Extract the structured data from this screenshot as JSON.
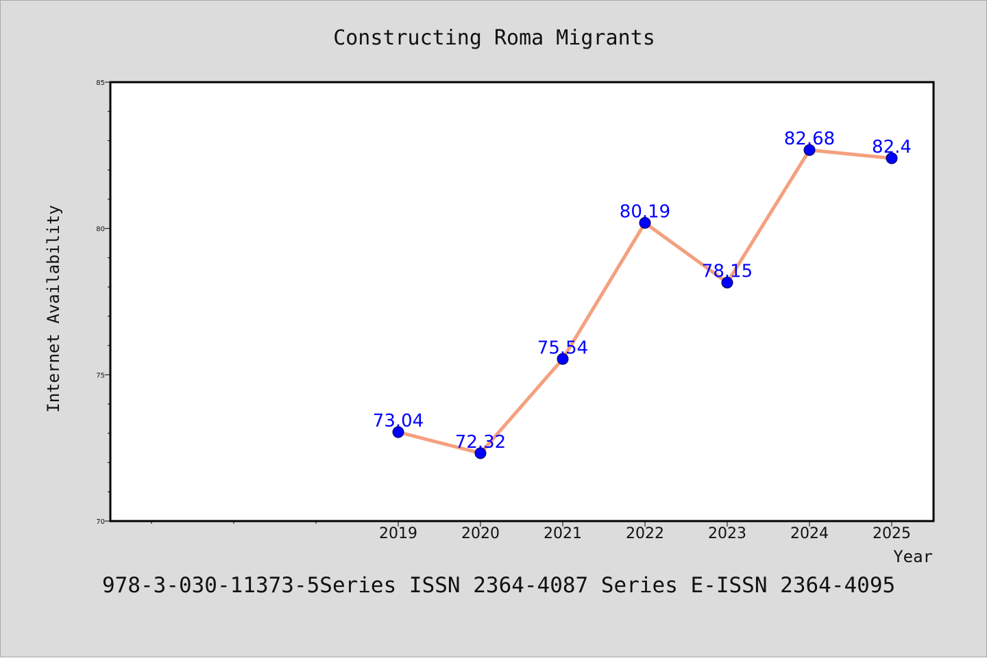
{
  "chart_data": {
    "type": "line",
    "title": "Constructing Roma Migrants",
    "xlabel": "Year",
    "ylabel": "Internet Availability",
    "x": [
      "2019",
      "2020",
      "2021",
      "2022",
      "2023",
      "2024",
      "2025"
    ],
    "values": [
      73.04,
      72.32,
      75.54,
      80.19,
      78.15,
      82.68,
      82.4
    ],
    "data_labels": [
      "73.04",
      "72.32",
      "75.54",
      "80.19",
      "78.15",
      "82.68",
      "82.4"
    ],
    "ylim": [
      70,
      85
    ],
    "yticks": [
      "70",
      "75",
      "80",
      "85"
    ],
    "grid": false,
    "legend": "none",
    "colors": {
      "line": "#f4a07e",
      "marker": "#0000ff",
      "data_label": "#0000ff",
      "background": "#dcdcdc",
      "plot_background": "#ffffff"
    }
  },
  "footer": "978-3-030-11373-5Series ISSN 2364-4087 Series E-ISSN 2364-4095"
}
